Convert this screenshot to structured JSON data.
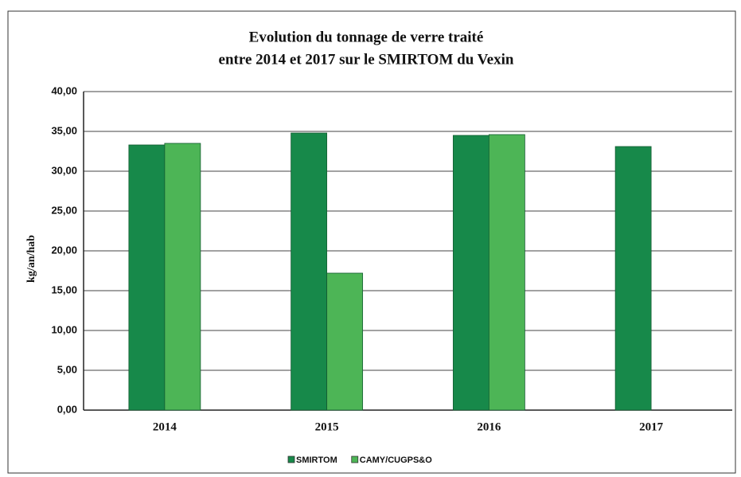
{
  "chart_data": {
    "type": "bar",
    "title": [
      "Evolution du tonnage de verre traité",
      "entre 2014 et 2017 sur le SMIRTOM du Vexin"
    ],
    "y_label": "kg/an/hab",
    "categories": [
      "2014",
      "2015",
      "2016",
      "2017"
    ],
    "series": [
      {
        "name": "SMIRTOM",
        "color": "#17894a",
        "values": [
          33.3,
          34.8,
          34.5,
          33.1
        ]
      },
      {
        "name": "CAMY/CUGPS&O",
        "color": "#4db556",
        "values": [
          33.5,
          17.2,
          34.6,
          null
        ]
      }
    ],
    "ylim": [
      0,
      40
    ],
    "yticks": [
      {
        "value": 0,
        "label": "0,00"
      },
      {
        "value": 5,
        "label": "5,00"
      },
      {
        "value": 10,
        "label": "10,00"
      },
      {
        "value": 15,
        "label": "15,00"
      },
      {
        "value": 20,
        "label": "20,00"
      },
      {
        "value": 25,
        "label": "25,00"
      },
      {
        "value": 30,
        "label": "30,00"
      },
      {
        "value": 35,
        "label": "35,00"
      },
      {
        "value": 40,
        "label": "40,00"
      }
    ],
    "grid": true,
    "legend": "bottom"
  }
}
